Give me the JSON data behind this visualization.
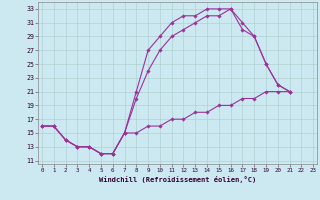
{
  "bg_color": "#cce8f0",
  "grid_color": "#aacccc",
  "line_color": "#993399",
  "xlabel": "Windchill (Refroidissement éolien,°C)",
  "xticks": [
    0,
    1,
    2,
    3,
    4,
    5,
    6,
    7,
    8,
    9,
    10,
    11,
    12,
    13,
    14,
    15,
    16,
    17,
    18,
    19,
    20,
    21,
    22,
    23
  ],
  "yticks": [
    11,
    13,
    15,
    17,
    19,
    21,
    23,
    25,
    27,
    29,
    31,
    33
  ],
  "xlim": [
    -0.3,
    23.3
  ],
  "ylim": [
    10.5,
    34.0
  ],
  "series": [
    {
      "x": [
        0,
        1,
        2,
        3,
        4,
        5,
        6,
        7,
        8,
        9,
        10,
        11,
        12,
        13,
        14,
        15,
        16,
        17,
        18,
        19,
        20,
        21
      ],
      "y": [
        16,
        16,
        14,
        13,
        13,
        12,
        12,
        15,
        21,
        27,
        29,
        31,
        32,
        32,
        33,
        33,
        33,
        31,
        29,
        25,
        22,
        21
      ]
    },
    {
      "x": [
        0,
        1,
        2,
        3,
        4,
        5,
        6,
        7,
        8,
        9,
        10,
        11,
        12,
        13,
        14,
        15,
        16,
        17,
        18,
        19,
        20,
        21
      ],
      "y": [
        16,
        16,
        14,
        13,
        13,
        12,
        12,
        15,
        20,
        24,
        27,
        29,
        30,
        31,
        32,
        32,
        33,
        30,
        29,
        25,
        22,
        21
      ]
    },
    {
      "x": [
        0,
        1,
        2,
        3,
        4,
        5,
        6,
        7,
        8,
        9,
        10,
        11,
        12,
        13,
        14,
        15,
        16,
        17,
        18,
        19,
        20,
        21
      ],
      "y": [
        16,
        16,
        14,
        13,
        13,
        12,
        12,
        15,
        15,
        16,
        16,
        17,
        17,
        18,
        18,
        19,
        19,
        20,
        20,
        21,
        21,
        21
      ]
    }
  ]
}
